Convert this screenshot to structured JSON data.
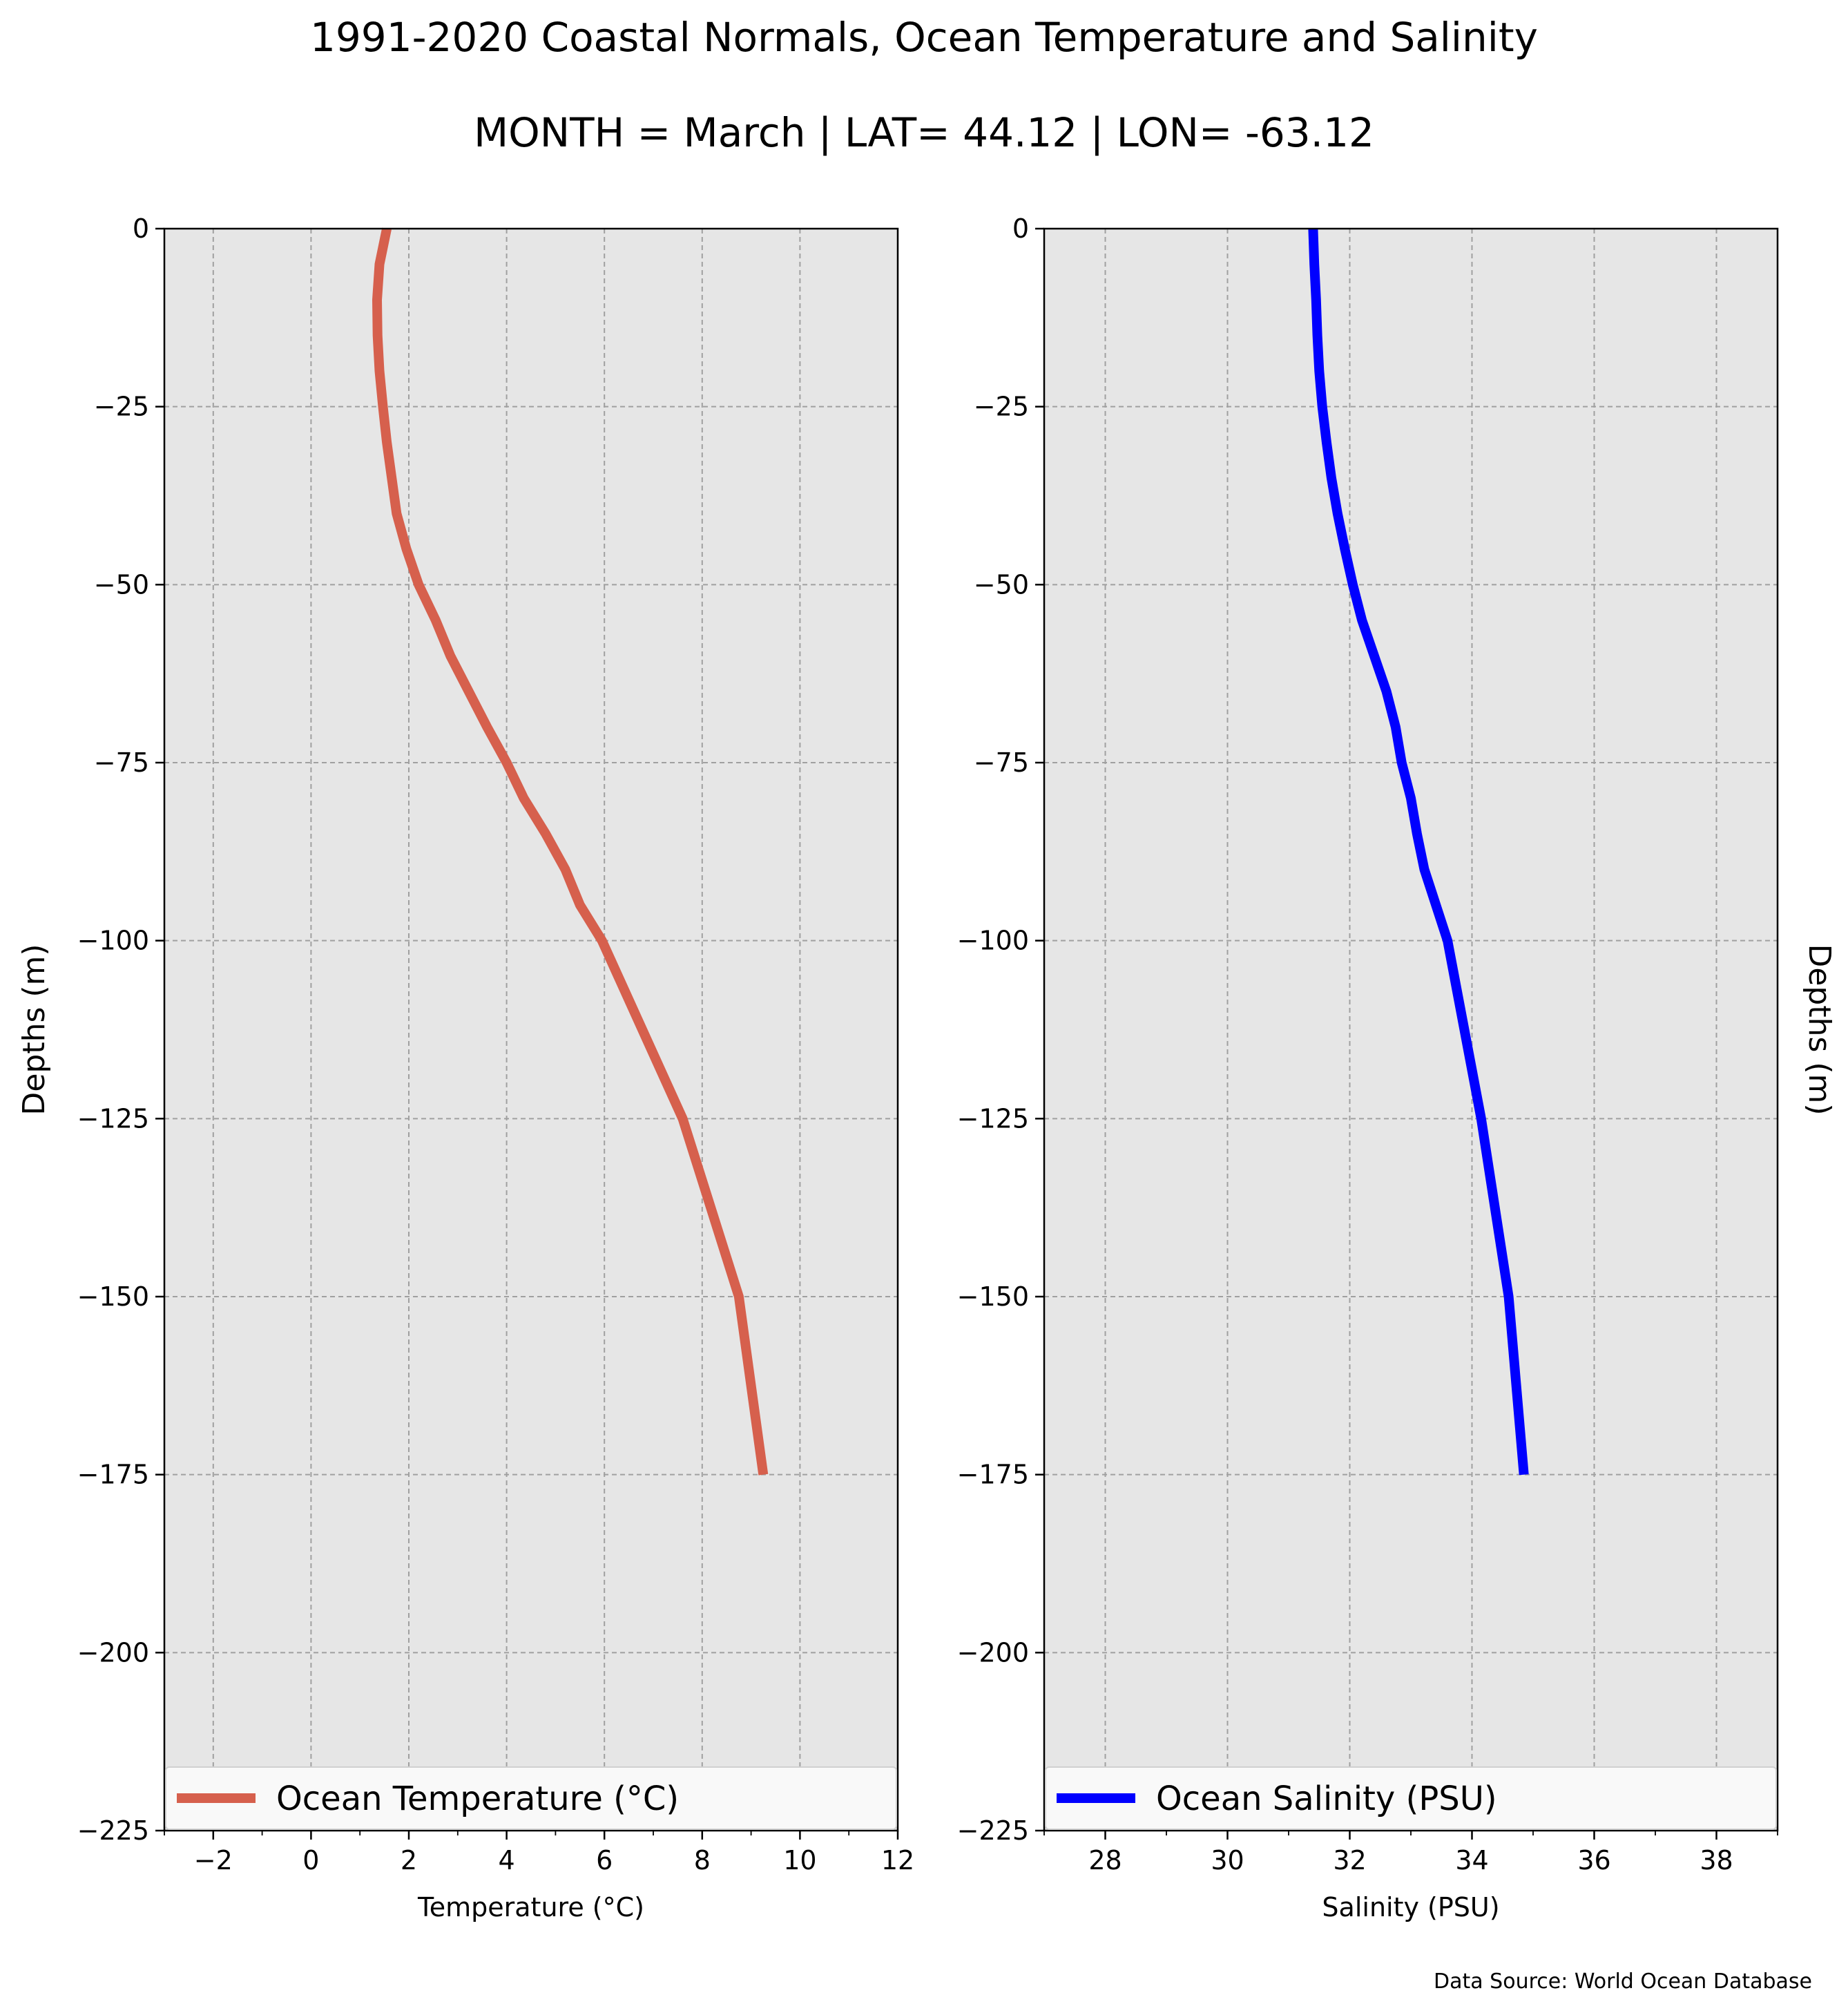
{
  "figure": {
    "title_line1": "1991-2020 Coastal Normals, Ocean Temperature and Salinity",
    "title_line2": "MONTH = March | LAT= 44.12 | LON= -63.12",
    "source": "Data Source: World Ocean Database"
  },
  "chart_data": [
    {
      "type": "line",
      "title": "",
      "xlabel": "Temperature (°C)",
      "ylabel": "Depths (m)",
      "xlim": [
        -3,
        12
      ],
      "ylim": [
        -225,
        0
      ],
      "x_ticks": [
        -2,
        0,
        2,
        4,
        6,
        8,
        10,
        12
      ],
      "x_tick_labels": [
        "−2",
        "0",
        "2",
        "4",
        "6",
        "8",
        "10",
        "12"
      ],
      "x_minor_ticks": [
        -3,
        -1,
        1,
        3,
        5,
        7,
        9,
        11
      ],
      "y_ticks": [
        0,
        -25,
        -50,
        -75,
        -100,
        -125,
        -150,
        -175,
        -200,
        -225
      ],
      "y_tick_labels": [
        "0",
        "−25",
        "−50",
        "−75",
        "−100",
        "−125",
        "−150",
        "−175",
        "−200",
        "−225"
      ],
      "grid": true,
      "background": "#e6e6e6",
      "legend_position": "lower center",
      "series": [
        {
          "name": "Ocean Temperature (°C)",
          "color": "#d6604d",
          "points": [
            {
              "x": 1.55,
              "y": 0
            },
            {
              "x": 1.4,
              "y": -5
            },
            {
              "x": 1.35,
              "y": -10
            },
            {
              "x": 1.36,
              "y": -15
            },
            {
              "x": 1.4,
              "y": -20
            },
            {
              "x": 1.47,
              "y": -25
            },
            {
              "x": 1.55,
              "y": -30
            },
            {
              "x": 1.65,
              "y": -35
            },
            {
              "x": 1.75,
              "y": -40
            },
            {
              "x": 1.95,
              "y": -45
            },
            {
              "x": 2.2,
              "y": -50
            },
            {
              "x": 2.55,
              "y": -55
            },
            {
              "x": 2.85,
              "y": -60
            },
            {
              "x": 3.6,
              "y": -70
            },
            {
              "x": 4.0,
              "y": -75
            },
            {
              "x": 4.35,
              "y": -80
            },
            {
              "x": 4.8,
              "y": -85
            },
            {
              "x": 5.2,
              "y": -90
            },
            {
              "x": 5.5,
              "y": -95
            },
            {
              "x": 5.95,
              "y": -100
            },
            {
              "x": 7.6,
              "y": -125
            },
            {
              "x": 8.75,
              "y": -150
            },
            {
              "x": 9.25,
              "y": -175
            }
          ]
        }
      ]
    },
    {
      "type": "line",
      "title": "",
      "xlabel": "Salinity (PSU)",
      "ylabel": "Depths (m)",
      "xlim": [
        27,
        39
      ],
      "ylim": [
        -225,
        0
      ],
      "x_ticks": [
        28,
        30,
        32,
        34,
        36,
        38
      ],
      "x_tick_labels": [
        "28",
        "30",
        "32",
        "34",
        "36",
        "38"
      ],
      "x_minor_ticks": [
        27,
        29,
        31,
        33,
        35,
        37,
        39
      ],
      "y_ticks": [
        0,
        -25,
        -50,
        -75,
        -100,
        -125,
        -150,
        -175,
        -200,
        -225
      ],
      "y_tick_labels": [
        "0",
        "−25",
        "−50",
        "−75",
        "−100",
        "−125",
        "−150",
        "−175",
        "−200",
        "−225"
      ],
      "grid": true,
      "background": "#e6e6e6",
      "legend_position": "lower center",
      "series": [
        {
          "name": "Ocean Salinity (PSU)",
          "color": "#0000ff",
          "points": [
            {
              "x": 31.4,
              "y": 0
            },
            {
              "x": 31.42,
              "y": -5
            },
            {
              "x": 31.45,
              "y": -10
            },
            {
              "x": 31.47,
              "y": -15
            },
            {
              "x": 31.5,
              "y": -20
            },
            {
              "x": 31.55,
              "y": -25
            },
            {
              "x": 31.62,
              "y": -30
            },
            {
              "x": 31.7,
              "y": -35
            },
            {
              "x": 31.8,
              "y": -40
            },
            {
              "x": 31.92,
              "y": -45
            },
            {
              "x": 32.05,
              "y": -50
            },
            {
              "x": 32.2,
              "y": -55
            },
            {
              "x": 32.4,
              "y": -60
            },
            {
              "x": 32.6,
              "y": -65
            },
            {
              "x": 32.75,
              "y": -70
            },
            {
              "x": 32.85,
              "y": -75
            },
            {
              "x": 33.0,
              "y": -80
            },
            {
              "x": 33.1,
              "y": -85
            },
            {
              "x": 33.22,
              "y": -90
            },
            {
              "x": 33.6,
              "y": -100
            },
            {
              "x": 34.15,
              "y": -125
            },
            {
              "x": 34.6,
              "y": -150
            },
            {
              "x": 34.85,
              "y": -175
            }
          ]
        }
      ]
    }
  ]
}
